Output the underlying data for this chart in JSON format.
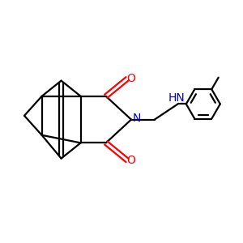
{
  "bg_color": "#ffffff",
  "bond_color": "#000000",
  "N_color": "#0000cc",
  "O_color": "#ff0000",
  "line_width": 1.6,
  "figsize": [
    3.0,
    3.0
  ],
  "dpi": 100,
  "xlim": [
    -1.25,
    1.25
  ],
  "ylim": [
    -0.75,
    0.75
  ]
}
